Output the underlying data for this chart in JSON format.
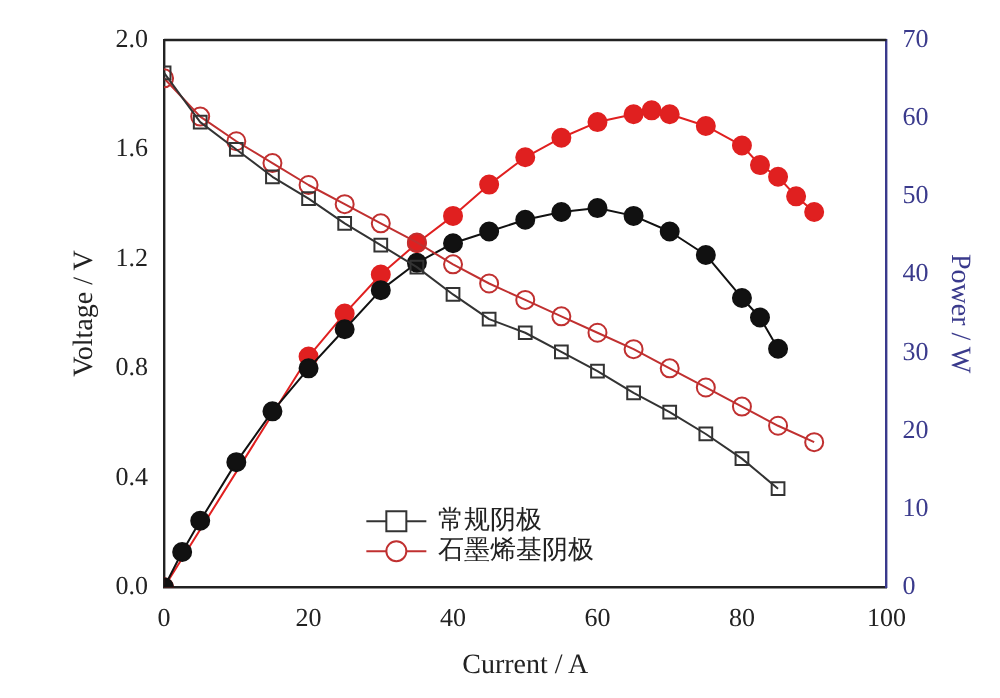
{
  "chart_data": {
    "type": "line",
    "xlabel": "Current / A",
    "ylabel": "Voltage / V",
    "y2label": "Power / W",
    "xlim": [
      0,
      100
    ],
    "xticks": [
      0,
      20,
      40,
      60,
      80,
      100
    ],
    "ylim": [
      0,
      2.0
    ],
    "yticks": [
      {
        "value": 0,
        "label": "0.0"
      },
      {
        "value": 0.4,
        "label": "0.4"
      },
      {
        "value": 0.8,
        "label": "0.8"
      },
      {
        "value": 1.2,
        "label": "1.2"
      },
      {
        "value": 1.6,
        "label": "1.6"
      },
      {
        "value": 2,
        "label": "2.0"
      }
    ],
    "y2lim": [
      0,
      70
    ],
    "y2ticks": [
      0,
      10,
      20,
      30,
      40,
      50,
      60,
      70
    ],
    "grid": false,
    "legend": "bottom",
    "series": [
      {
        "name": "常规阴极",
        "color": "#333333",
        "marker": "square",
        "x": [
          0,
          5,
          10,
          15,
          20,
          25,
          30,
          35,
          40,
          45,
          50,
          55,
          60,
          65,
          70,
          75,
          80,
          85
        ],
        "values": [
          1.88,
          1.7,
          1.6,
          1.5,
          1.42,
          1.33,
          1.25,
          1.17,
          1.07,
          0.98,
          0.93,
          0.86,
          0.79,
          0.71,
          0.64,
          0.56,
          0.47,
          0.36
        ]
      },
      {
        "name": "石墨烯基阴极",
        "color": "#c03030",
        "marker": "circle",
        "x": [
          0,
          5,
          10,
          15,
          20,
          25,
          30,
          35,
          40,
          45,
          50,
          55,
          60,
          65,
          70,
          75,
          80,
          85,
          90
        ],
        "values": [
          1.86,
          1.72,
          1.63,
          1.55,
          1.47,
          1.4,
          1.33,
          1.26,
          1.18,
          1.11,
          1.05,
          0.99,
          0.93,
          0.87,
          0.8,
          0.73,
          0.66,
          0.59,
          0.53
        ]
      },
      {
        "color": "#111111",
        "marker": "circle",
        "axis": "y2",
        "x": [
          0,
          2.5,
          5,
          10,
          15,
          20,
          25,
          30,
          35,
          40,
          45,
          50,
          55,
          60,
          65,
          70,
          75,
          80,
          82.5,
          85
        ],
        "values": [
          0,
          4.5,
          8.5,
          16,
          22.5,
          28,
          33,
          38,
          41.5,
          44,
          45.5,
          47,
          48,
          48.5,
          47.5,
          45.5,
          42.5,
          37,
          34.5,
          30.5
        ]
      },
      {
        "color": "#e02020",
        "marker": "circle",
        "axis": "y2",
        "x": [
          0,
          5,
          10,
          15,
          20,
          25,
          30,
          35,
          40,
          45,
          50,
          55,
          60,
          65,
          67.5,
          70,
          75,
          80,
          82.5,
          85,
          87.5,
          90
        ],
        "values": [
          0,
          null,
          null,
          null,
          29.5,
          35,
          40,
          44,
          47.5,
          51.5,
          55,
          57.5,
          59.5,
          60.5,
          61,
          60.5,
          59,
          56.5,
          54,
          52.5,
          50,
          48
        ]
      }
    ]
  }
}
